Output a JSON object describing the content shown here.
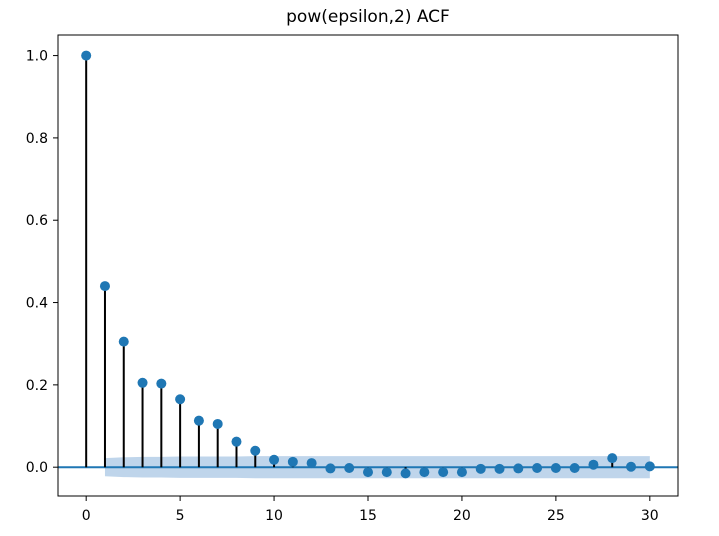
{
  "chart_data": {
    "type": "stem",
    "title": "pow(epsilon,2) ACF",
    "xlabel": "",
    "ylabel": "",
    "xlim": [
      -1.5,
      31.5
    ],
    "ylim": [
      -0.07,
      1.05
    ],
    "xticks": [
      0,
      5,
      10,
      15,
      20,
      25,
      30
    ],
    "yticks": [
      0.0,
      0.2,
      0.4,
      0.6,
      0.8,
      1.0
    ],
    "ytick_labels": [
      "0.0",
      "0.2",
      "0.4",
      "0.6",
      "0.8",
      "1.0"
    ],
    "lags": [
      0,
      1,
      2,
      3,
      4,
      5,
      6,
      7,
      8,
      9,
      10,
      11,
      12,
      13,
      14,
      15,
      16,
      17,
      18,
      19,
      20,
      21,
      22,
      23,
      24,
      25,
      26,
      27,
      28,
      29,
      30
    ],
    "values": [
      1.0,
      0.44,
      0.305,
      0.205,
      0.203,
      0.165,
      0.113,
      0.105,
      0.062,
      0.04,
      0.018,
      0.013,
      0.01,
      -0.003,
      -0.002,
      -0.012,
      -0.012,
      -0.015,
      -0.012,
      -0.012,
      -0.012,
      -0.004,
      -0.004,
      -0.003,
      -0.002,
      -0.002,
      -0.002,
      0.006,
      0.022,
      0.001,
      0.002
    ],
    "confidence_band": {
      "lags": [
        1,
        2,
        3,
        4,
        5,
        6,
        7,
        8,
        9,
        10,
        11,
        12,
        13,
        14,
        15,
        16,
        17,
        18,
        19,
        20,
        21,
        22,
        23,
        24,
        25,
        26,
        27,
        28,
        29,
        30
      ],
      "upper": [
        0.022,
        0.024,
        0.025,
        0.025,
        0.026,
        0.026,
        0.026,
        0.026,
        0.027,
        0.027,
        0.027,
        0.027,
        0.027,
        0.027,
        0.027,
        0.027,
        0.027,
        0.027,
        0.027,
        0.027,
        0.027,
        0.027,
        0.027,
        0.027,
        0.027,
        0.027,
        0.027,
        0.027,
        0.027,
        0.027
      ]
    },
    "grid": false,
    "colors": {
      "marker": "#1f77b4",
      "stem": "#000000",
      "zero_line": "#1f77b4",
      "band": "#a9c7e4"
    }
  }
}
